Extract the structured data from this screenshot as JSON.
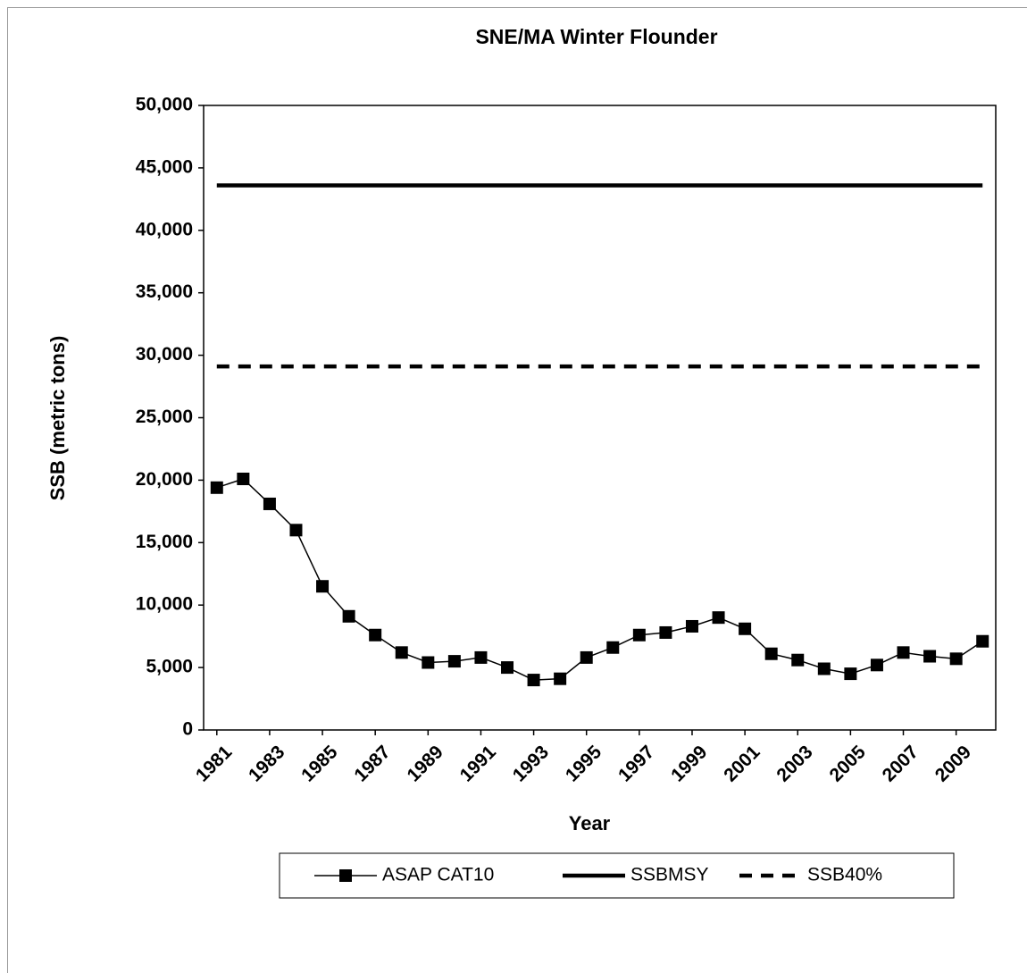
{
  "chart_data": {
    "type": "line",
    "title": "SNE/MA Winter Flounder",
    "x_label": "Year",
    "y_label": "SSB (metric tons)",
    "x": [
      1981,
      1982,
      1983,
      1984,
      1985,
      1986,
      1987,
      1988,
      1989,
      1990,
      1991,
      1992,
      1993,
      1994,
      1995,
      1996,
      1997,
      1998,
      1999,
      2000,
      2001,
      2002,
      2003,
      2004,
      2005,
      2006,
      2007,
      2008,
      2009,
      2010
    ],
    "xlim": [
      1980.5,
      2010.5
    ],
    "xticks": [
      1981,
      1983,
      1985,
      1987,
      1989,
      1991,
      1993,
      1995,
      1997,
      1999,
      2001,
      2003,
      2005,
      2007,
      2009
    ],
    "ylim": [
      0,
      50000
    ],
    "yticks": [
      0,
      {
        "value": 5000,
        "label": "5,000"
      },
      {
        "value": 10000,
        "label": "10,000"
      },
      {
        "value": 15000,
        "label": "15,000"
      },
      {
        "value": 20000,
        "label": "20,000"
      },
      {
        "value": 25000,
        "label": "25,000"
      },
      {
        "value": 30000,
        "label": "30,000"
      },
      {
        "value": 35000,
        "label": "35,000"
      },
      {
        "value": 40000,
        "label": "40,000"
      },
      {
        "value": 45000,
        "label": "45,000"
      },
      {
        "value": 50000,
        "label": "50,000"
      }
    ],
    "grid": false,
    "legend": "bottom",
    "series": [
      {
        "name": "ASAP CAT10",
        "color": "#000000",
        "marker": "square",
        "dash": false,
        "values": [
          19400,
          20100,
          18100,
          16000,
          11500,
          9100,
          7600,
          6200,
          5400,
          5500,
          5800,
          5000,
          4000,
          4100,
          5800,
          6600,
          7600,
          7800,
          8300,
          9000,
          8100,
          6100,
          5600,
          4900,
          4500,
          5200,
          6200,
          5900,
          5700,
          7100
        ]
      },
      {
        "name": "SSBMSY",
        "color": "#000000",
        "marker": "none",
        "dash": false,
        "values": [
          43600,
          43600,
          43600,
          43600,
          43600,
          43600,
          43600,
          43600,
          43600,
          43600,
          43600,
          43600,
          43600,
          43600,
          43600,
          43600,
          43600,
          43600,
          43600,
          43600,
          43600,
          43600,
          43600,
          43600,
          43600,
          43600,
          43600,
          43600,
          43600,
          43600
        ]
      },
      {
        "name": "SSB40%",
        "color": "#000000",
        "marker": "none",
        "dash": true,
        "values": [
          29100,
          29100,
          29100,
          29100,
          29100,
          29100,
          29100,
          29100,
          29100,
          29100,
          29100,
          29100,
          29100,
          29100,
          29100,
          29100,
          29100,
          29100,
          29100,
          29100,
          29100,
          29100,
          29100,
          29100,
          29100,
          29100,
          29100,
          29100,
          29100,
          29100
        ]
      }
    ]
  }
}
